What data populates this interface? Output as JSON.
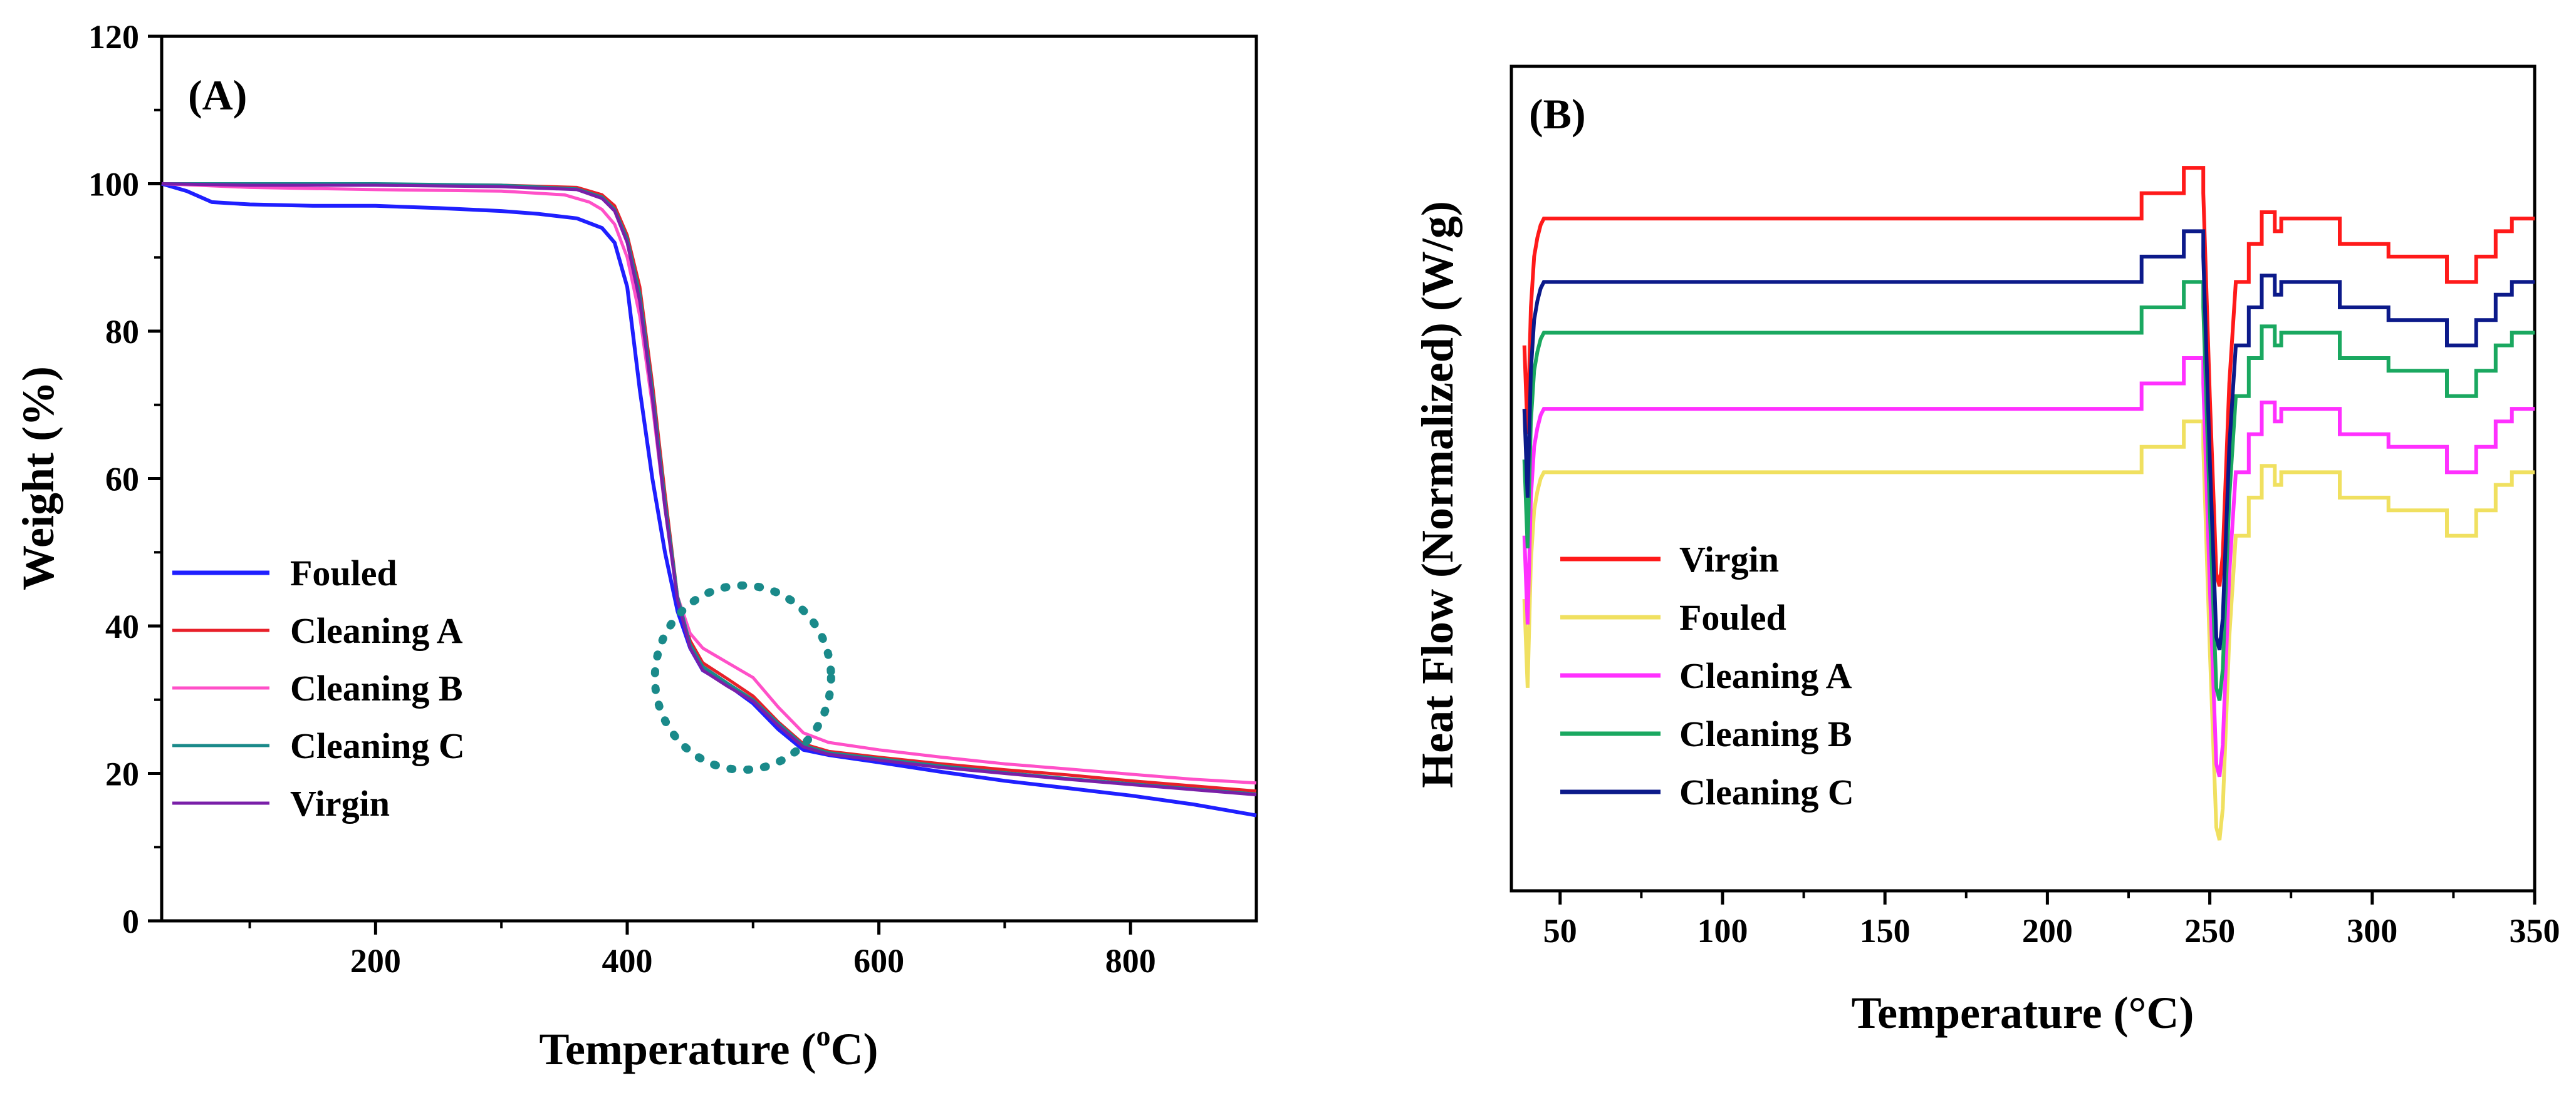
{
  "chart_data": [
    {
      "type": "line",
      "panel_label": "(A)",
      "xlabel": "Temperature (",
      "xlabel_sup": "o",
      "xlabel_unit": "C)",
      "ylabel": "Weight (%)",
      "xlim": [
        30,
        900
      ],
      "ylim": [
        0,
        120
      ],
      "x_ticks": [
        200,
        400,
        600,
        800
      ],
      "x_tick_labels": [
        "200",
        "400",
        "600",
        "800"
      ],
      "x_minor_ticks": [
        100,
        300,
        500,
        700
      ],
      "y_ticks": [
        0,
        20,
        40,
        60,
        80,
        100,
        120
      ],
      "y_tick_labels": [
        "0",
        "20",
        "40",
        "60",
        "80",
        "100",
        "120"
      ],
      "y_minor_ticks": [
        10,
        30,
        50,
        70,
        90,
        110
      ],
      "grid": false,
      "legend_position": "lower-left",
      "annotation": {
        "type": "dotted-circle",
        "color": "#1a8a8a",
        "center": [
          492,
          33
        ],
        "rx_data": 70,
        "ry_data": 12.5
      },
      "series": [
        {
          "name": "Fouled",
          "color": "#1f1fff",
          "x": [
            30,
            50,
            70,
            100,
            150,
            200,
            250,
            300,
            330,
            360,
            380,
            390,
            400,
            410,
            420,
            430,
            440,
            450,
            460,
            480,
            500,
            520,
            540,
            560,
            600,
            650,
            700,
            750,
            800,
            850,
            900
          ],
          "y": [
            100,
            99,
            97.5,
            97.2,
            97.0,
            97.0,
            96.7,
            96.3,
            95.9,
            95.3,
            94.0,
            92.0,
            86.0,
            72.0,
            60.0,
            50.0,
            42.0,
            37.0,
            34.0,
            32.0,
            29.5,
            26.0,
            23.2,
            22.5,
            21.5,
            20.2,
            19.0,
            18.0,
            17.0,
            15.8,
            14.3
          ]
        },
        {
          "name": "Cleaning A",
          "color": "#e8202a",
          "x": [
            30,
            100,
            200,
            300,
            360,
            380,
            390,
            400,
            410,
            420,
            430,
            440,
            450,
            460,
            480,
            500,
            520,
            540,
            560,
            600,
            650,
            700,
            750,
            800,
            850,
            900
          ],
          "y": [
            100,
            99.9,
            99.9,
            99.8,
            99.5,
            98.5,
            97.0,
            93.0,
            86.0,
            73.0,
            58.0,
            44.0,
            38.0,
            35.0,
            32.8,
            30.5,
            27.0,
            24.0,
            23.0,
            22.2,
            21.3,
            20.5,
            19.8,
            19.0,
            18.3,
            17.6
          ]
        },
        {
          "name": "Cleaning B",
          "color": "#ff50c8",
          "x": [
            30,
            100,
            200,
            300,
            350,
            370,
            380,
            390,
            400,
            410,
            420,
            430,
            440,
            450,
            460,
            480,
            500,
            520,
            540,
            560,
            600,
            650,
            700,
            750,
            800,
            850,
            900
          ],
          "y": [
            100,
            99.5,
            99.2,
            99.0,
            98.5,
            97.5,
            96.5,
            94.5,
            90.0,
            82.0,
            70.0,
            56.0,
            44.0,
            39.0,
            37.0,
            35.0,
            33.0,
            29.0,
            25.5,
            24.2,
            23.2,
            22.2,
            21.3,
            20.6,
            19.9,
            19.2,
            18.7
          ]
        },
        {
          "name": "Cleaning C",
          "color": "#1a8a8a",
          "x": [
            30,
            100,
            200,
            300,
            360,
            380,
            390,
            400,
            410,
            420,
            430,
            440,
            450,
            460,
            480,
            500,
            520,
            540,
            560,
            600,
            650,
            700,
            750,
            800,
            850,
            900
          ],
          "y": [
            100,
            100,
            100,
            99.8,
            99.3,
            98.2,
            96.5,
            92.5,
            85.0,
            72.0,
            57.0,
            44.0,
            37.5,
            34.5,
            32.2,
            30.0,
            26.8,
            23.8,
            22.8,
            22.0,
            21.0,
            20.1,
            19.3,
            18.6,
            17.9,
            17.2
          ]
        },
        {
          "name": "Virgin",
          "color": "#7a1fa8",
          "x": [
            30,
            100,
            200,
            300,
            360,
            380,
            390,
            400,
            410,
            420,
            430,
            440,
            450,
            460,
            480,
            500,
            520,
            540,
            560,
            600,
            650,
            700,
            750,
            800,
            850,
            900
          ],
          "y": [
            100,
            99.8,
            99.8,
            99.6,
            99.2,
            98.0,
            96.3,
            92.0,
            84.0,
            71.0,
            56.0,
            43.5,
            37.0,
            34.0,
            31.8,
            29.8,
            26.5,
            23.6,
            22.6,
            21.8,
            20.8,
            20.0,
            19.2,
            18.5,
            17.8,
            17.1
          ]
        }
      ]
    },
    {
      "type": "line",
      "panel_label": "(B)",
      "xlabel": "Temperature (°C)",
      "ylabel": "Heat Flow (Normalized) (W/g)",
      "xlim": [
        35,
        350
      ],
      "x_ticks": [
        50,
        100,
        150,
        200,
        250,
        300,
        350
      ],
      "x_tick_labels": [
        "50",
        "100",
        "150",
        "200",
        "250",
        "300",
        "350"
      ],
      "x_minor_ticks": [
        75,
        125,
        175,
        225,
        275,
        325
      ],
      "y_ticks": [],
      "grid": false,
      "legend_position": "lower-left",
      "series": [
        {
          "name": "Virgin",
          "color": "#ff1a1a",
          "offset": 1.0
        },
        {
          "name": "Fouled",
          "color": "#f0e060",
          "offset": -3.0
        },
        {
          "name": "Cleaning A",
          "color": "#ff30ff",
          "offset": -2.0
        },
        {
          "name": "Cleaning B",
          "color": "#1aa860",
          "offset": -0.8
        },
        {
          "name": "Cleaning C",
          "color": "#0c1a8a",
          "offset": 0.0
        }
      ],
      "base_profile": {
        "x": [
          39,
          40,
          41,
          42,
          43,
          44,
          45,
          229,
          229,
          242,
          242,
          248,
          248,
          250,
          252,
          253,
          254,
          256,
          258,
          262,
          262,
          266,
          266,
          270,
          270,
          272,
          272,
          290,
          290,
          305,
          305,
          323,
          323,
          332,
          332,
          338,
          338,
          343,
          343,
          350
        ],
        "y": [
          5.6,
          4.2,
          6.2,
          7.0,
          7.3,
          7.5,
          7.6,
          7.6,
          8.0,
          8.0,
          8.4,
          8.4,
          8.0,
          4.8,
          2.0,
          1.8,
          2.3,
          5.0,
          6.6,
          6.6,
          7.2,
          7.2,
          7.7,
          7.7,
          7.4,
          7.4,
          7.6,
          7.6,
          7.2,
          7.2,
          7.0,
          7.0,
          6.6,
          6.6,
          7.0,
          7.0,
          7.4,
          7.4,
          7.6,
          7.6
        ]
      },
      "ylim": [
        -2,
        11
      ]
    }
  ]
}
